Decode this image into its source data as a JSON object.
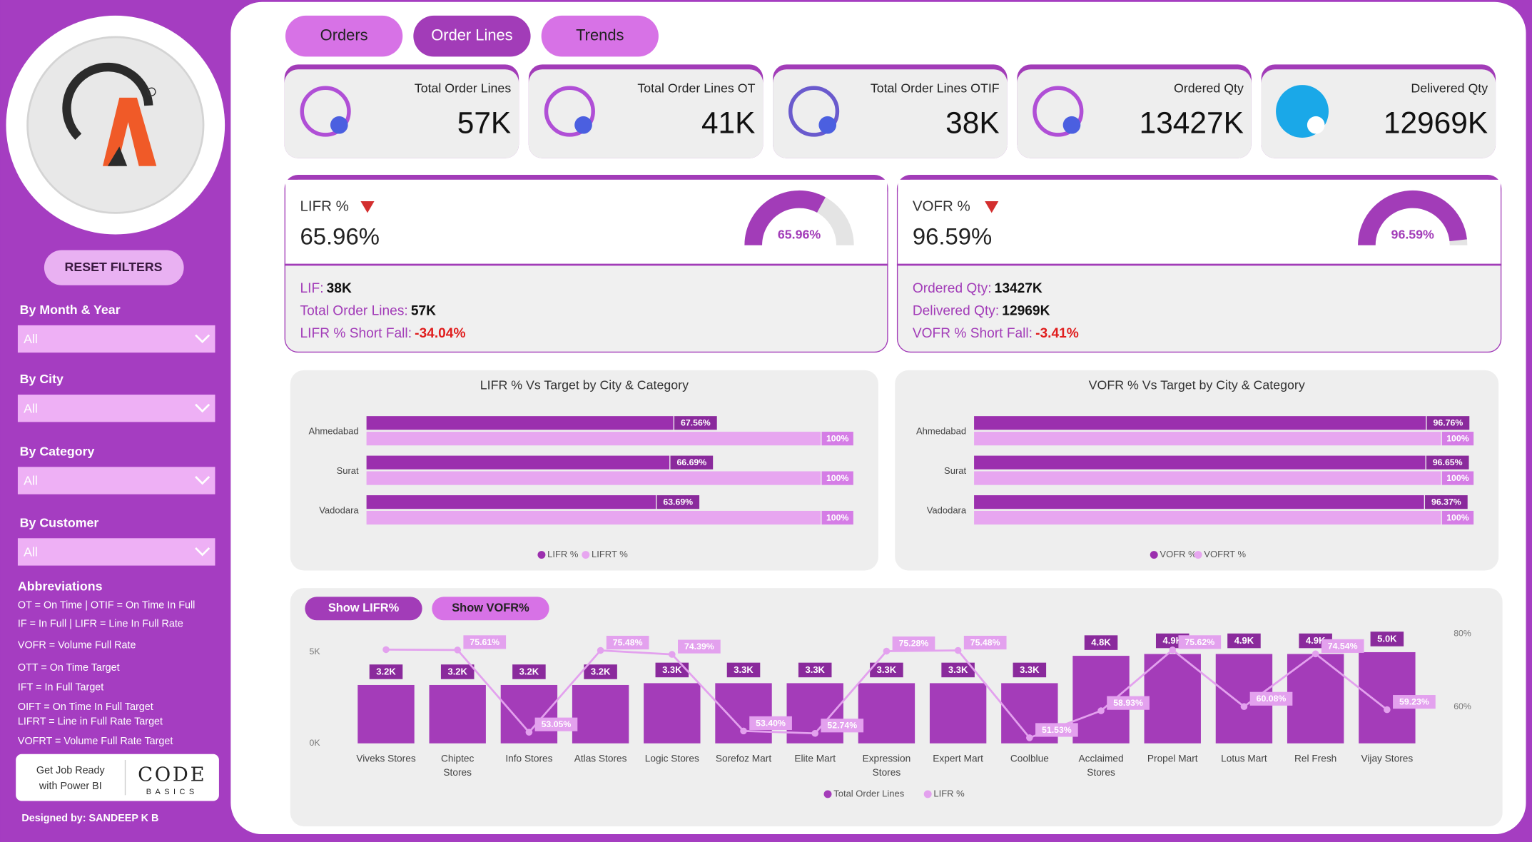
{
  "sidebar": {
    "reset_button": "RESET FILTERS",
    "filters": [
      {
        "label": "By Month & Year",
        "value": "All"
      },
      {
        "label": "By City",
        "value": "All"
      },
      {
        "label": "By Category",
        "value": "All"
      },
      {
        "label": "By Customer",
        "value": "All"
      }
    ],
    "abbreviations_title": "Abbreviations",
    "abbreviations": [
      "OT = On Time | OTIF = On Time In Full",
      "IF = In Full | LIFR = Line In Full Rate",
      "VOFR = Volume Full Rate",
      "OTT = On Time Target",
      "IFT = In Full Target",
      "OIFT = On Time In Full Target",
      "LIFRT = Line in Full Rate Target",
      "VOFRT = Volume Full Rate Target"
    ],
    "promo": [
      "Get Job Ready",
      "with Power BI"
    ],
    "brand": [
      "CODE",
      "BASICS"
    ],
    "credit": "Designed by: SANDEEP K B"
  },
  "tabs": {
    "items": [
      "Orders",
      "Order Lines",
      "Trends"
    ],
    "active": 1
  },
  "kpis": [
    {
      "label": "Total Order Lines",
      "value": "57K"
    },
    {
      "label": "Total Order Lines OT",
      "value": "41K"
    },
    {
      "label": "Total Order Lines OTIF",
      "value": "38K"
    },
    {
      "label": "Ordered Qty",
      "value": "13427K"
    },
    {
      "label": "Delivered Qty",
      "value": "12969K"
    }
  ],
  "gauges": [
    {
      "label": "LIFR %",
      "value": 65.96,
      "value_label": "65.96%",
      "lim": [
        0,
        100
      ],
      "details": [
        {
          "label": "LIF:",
          "value": "38K"
        },
        {
          "label": "Total Order Lines:",
          "value": "57K"
        },
        {
          "label": "LIFR % Short Fall:",
          "value": "-34.04%"
        }
      ]
    },
    {
      "label": "VOFR %",
      "value": 96.59,
      "value_label": "96.59%",
      "lim": [
        0,
        100
      ],
      "details": [
        {
          "label": "Ordered Qty:",
          "value": "13427K"
        },
        {
          "label": "Delivered Qty:",
          "value": "12969K"
        },
        {
          "label": "VOFR % Short Fall:",
          "value": "-3.41%"
        }
      ]
    }
  ],
  "city_charts": [
    {
      "type": "bar",
      "title": "LIFR % Vs Target by City & Category",
      "categories": [
        "Ahmedabad",
        "Surat",
        "Vadodara"
      ],
      "series": [
        {
          "name": "LIFR %",
          "color": "#9b2fae",
          "values": [
            67.56,
            66.69,
            63.69
          ],
          "value_labels": [
            "67.56%",
            "66.69%",
            "63.69%"
          ]
        },
        {
          "name": "LIFRT %",
          "color": "#e7a6f0",
          "values": [
            100,
            100,
            100
          ],
          "value_labels": [
            "100%",
            "100%",
            "100%"
          ]
        }
      ],
      "xlim": [
        0,
        100
      ]
    },
    {
      "type": "bar",
      "title": "VOFR % Vs Target by City & Category",
      "categories": [
        "Ahmedabad",
        "Surat",
        "Vadodara"
      ],
      "series": [
        {
          "name": "VOFR %",
          "color": "#9b2fae",
          "values": [
            96.76,
            96.65,
            96.37
          ],
          "value_labels": [
            "96.76%",
            "96.65%",
            "96.37%"
          ]
        },
        {
          "name": "VOFRT %",
          "color": "#e7a6f0",
          "values": [
            100,
            100,
            100
          ],
          "value_labels": [
            "100%",
            "100%",
            "100%"
          ]
        }
      ],
      "xlim": [
        0,
        100
      ]
    }
  ],
  "customer_chart": {
    "type": "combo",
    "buttons": [
      "Show LIFR%",
      "Show VOFR%"
    ],
    "categories": [
      "Viveks Stores",
      "Chiptec Stores",
      "Info Stores",
      "Atlas Stores",
      "Logic Stores",
      "Sorefoz Mart",
      "Elite Mart",
      "Expression Stores",
      "Expert Mart",
      "Coolblue",
      "Acclaimed Stores",
      "Propel Mart",
      "Lotus Mart",
      "Rel Fresh",
      "Vijay Stores"
    ],
    "series": [
      {
        "name": "Total Order Lines",
        "type": "bar",
        "color": "#a43cb9",
        "values": [
          3200,
          3200,
          3200,
          3200,
          3300,
          3300,
          3300,
          3300,
          3300,
          3300,
          4800,
          4900,
          4900,
          4900,
          5000
        ],
        "value_labels": [
          "3.2K",
          "3.2K",
          "3.2K",
          "3.2K",
          "3.3K",
          "3.3K",
          "3.3K",
          "3.3K",
          "3.3K",
          "3.3K",
          "4.8K",
          "4.9K",
          "4.9K",
          "4.9K",
          "5.0K"
        ]
      },
      {
        "name": "LIFR %",
        "type": "line",
        "axis": "y2",
        "color": "#e3a1ee",
        "values": [
          75.7,
          75.61,
          53.05,
          75.48,
          74.39,
          53.4,
          52.74,
          75.28,
          75.48,
          51.53,
          58.93,
          75.62,
          60.08,
          74.54,
          59.23
        ],
        "value_labels": [
          null,
          "75.61%",
          "53.05%",
          "75.48%",
          "74.39%",
          "53.40%",
          "52.74%",
          "75.28%",
          "75.48%",
          "51.53%",
          "58.93%",
          "75.62%",
          "60.08%",
          "74.54%",
          "59.23%"
        ]
      }
    ],
    "ylim": [
      0,
      6000
    ],
    "yticks": [
      {
        "value": 0,
        "label": "0K"
      },
      {
        "value": 5000,
        "label": "5K"
      }
    ],
    "y2lim": [
      50,
      80
    ],
    "y2ticks": [
      {
        "value": 60,
        "label": "60%"
      },
      {
        "value": 80,
        "label": "80%"
      }
    ]
  }
}
